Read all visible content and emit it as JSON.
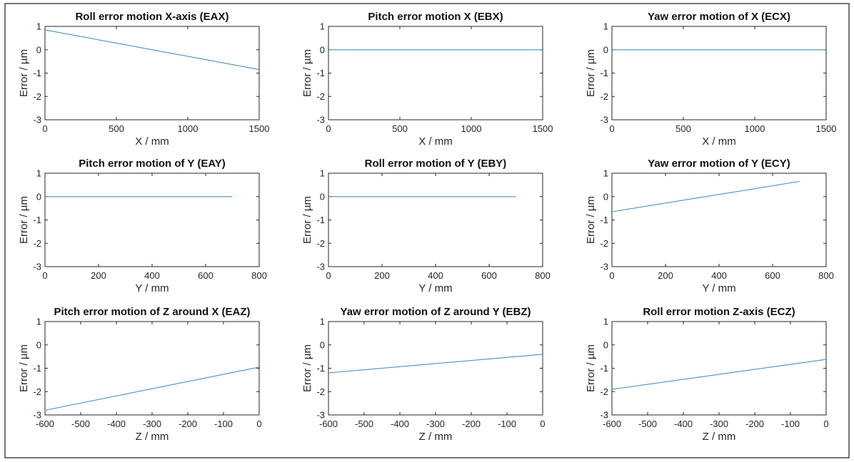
{
  "colors": {
    "series": "#4a90c8"
  },
  "chart_data": [
    {
      "type": "line",
      "title": "Roll error motion X-axis (EAX)",
      "xlabel": "X / mm",
      "ylabel": "Error / µm",
      "xlim": [
        0,
        1500
      ],
      "ylim": [
        -3,
        1
      ],
      "xticks": [
        "0",
        "500",
        "1000",
        "1500"
      ],
      "yticks": [
        "-3",
        "-2",
        "-1",
        "0",
        "1"
      ],
      "x": [
        0,
        1500
      ],
      "y": [
        0.85,
        -0.85
      ]
    },
    {
      "type": "line",
      "title": "Pitch error motion X (EBX)",
      "xlabel": "X / mm",
      "ylabel": "Error / µm",
      "xlim": [
        0,
        1500
      ],
      "ylim": [
        -3,
        1
      ],
      "xticks": [
        "0",
        "500",
        "1000",
        "1500"
      ],
      "yticks": [
        "-3",
        "-2",
        "-1",
        "0",
        "1"
      ],
      "x": [
        0,
        1500
      ],
      "y": [
        0,
        0
      ]
    },
    {
      "type": "line",
      "title": "Yaw error motion of X (ECX)",
      "xlabel": "X / mm",
      "ylabel": "Error / µm",
      "xlim": [
        0,
        1500
      ],
      "ylim": [
        -3,
        1
      ],
      "xticks": [
        "0",
        "500",
        "1000",
        "1500"
      ],
      "yticks": [
        "-3",
        "-2",
        "-1",
        "0",
        "1"
      ],
      "x": [
        0,
        1500
      ],
      "y": [
        0,
        0
      ]
    },
    {
      "type": "line",
      "title": "Pitch error motion of Y (EAY)",
      "xlabel": "Y / mm",
      "ylabel": "Error / µm",
      "xlim": [
        0,
        800
      ],
      "ylim": [
        -3,
        1
      ],
      "xticks": [
        "0",
        "200",
        "400",
        "600",
        "800"
      ],
      "yticks": [
        "-3",
        "-2",
        "-1",
        "0",
        "1"
      ],
      "x": [
        0,
        700
      ],
      "y": [
        0,
        0
      ]
    },
    {
      "type": "line",
      "title": "Roll error motion of Y (EBY)",
      "xlabel": "Y / mm",
      "ylabel": "Error / µm",
      "xlim": [
        0,
        800
      ],
      "ylim": [
        -3,
        1
      ],
      "xticks": [
        "0",
        "200",
        "400",
        "600",
        "800"
      ],
      "yticks": [
        "-3",
        "-2",
        "-1",
        "0",
        "1"
      ],
      "x": [
        0,
        700
      ],
      "y": [
        0,
        0
      ]
    },
    {
      "type": "line",
      "title": "Yaw error motion of Y (ECY)",
      "xlabel": "Y / mm",
      "ylabel": "Error / µm",
      "xlim": [
        0,
        800
      ],
      "ylim": [
        -3,
        1
      ],
      "xticks": [
        "0",
        "200",
        "400",
        "600",
        "800"
      ],
      "yticks": [
        "-3",
        "-2",
        "-1",
        "0",
        "1"
      ],
      "x": [
        0,
        700
      ],
      "y": [
        -0.65,
        0.65
      ]
    },
    {
      "type": "line",
      "title": "Pitch error motion of Z around X (EAZ)",
      "xlabel": "Z / mm",
      "ylabel": "Error / µm",
      "xlim": [
        -600,
        0
      ],
      "ylim": [
        -3,
        1
      ],
      "xticks": [
        "-600",
        "-500",
        "-400",
        "-300",
        "-200",
        "-100",
        "0"
      ],
      "yticks": [
        "-3",
        "-2",
        "-1",
        "0",
        "1"
      ],
      "x": [
        -600,
        0
      ],
      "y": [
        -2.8,
        -0.95
      ]
    },
    {
      "type": "line",
      "title": "Yaw error motion of Z around Y (EBZ)",
      "xlabel": "Z / mm",
      "ylabel": "Error / µm",
      "xlim": [
        -600,
        0
      ],
      "ylim": [
        -3,
        1
      ],
      "xticks": [
        "-600",
        "-500",
        "-400",
        "-300",
        "-200",
        "-100",
        "0"
      ],
      "yticks": [
        "-3",
        "-2",
        "-1",
        "0",
        "1"
      ],
      "x": [
        -600,
        0
      ],
      "y": [
        -1.2,
        -0.4
      ]
    },
    {
      "type": "line",
      "title": "Roll error motion Z-axis (ECZ)",
      "xlabel": "Z / mm",
      "ylabel": "Error / µm",
      "xlim": [
        -600,
        0
      ],
      "ylim": [
        -3,
        1
      ],
      "xticks": [
        "-600",
        "-500",
        "-400",
        "-300",
        "-200",
        "-100",
        "0"
      ],
      "yticks": [
        "-3",
        "-2",
        "-1",
        "0",
        "1"
      ],
      "x": [
        -600,
        0
      ],
      "y": [
        -1.9,
        -0.62
      ]
    }
  ]
}
